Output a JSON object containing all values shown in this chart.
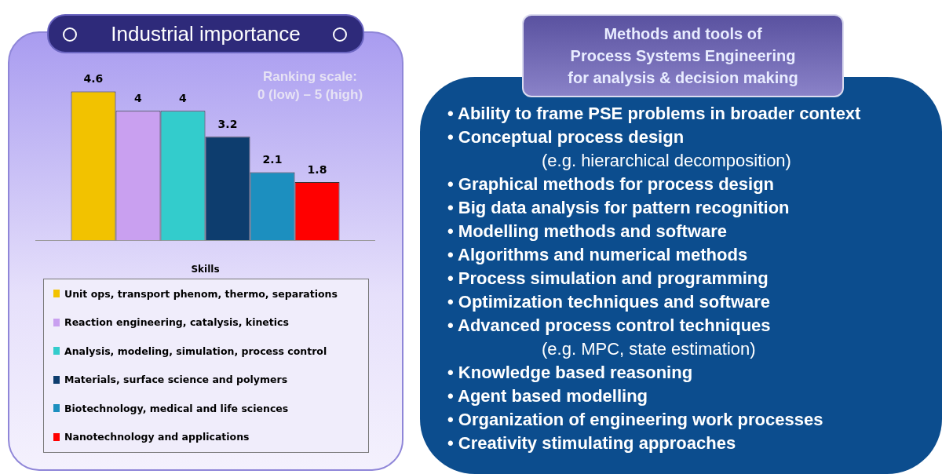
{
  "chart_data": [
    {
      "type": "bar",
      "title": "Industrial importance",
      "xlabel": "Skills",
      "categories": [
        null
      ],
      "series": [
        {
          "name": "Unit ops, transport phenom, thermo, separations",
          "color": "#f2c200",
          "values": [
            4.6
          ]
        },
        {
          "name": "Reaction engineering, catalysis, kinetics",
          "color": "#c9a0f0",
          "values": [
            4
          ]
        },
        {
          "name": "Analysis, modeling, simulation, process control",
          "color": "#33cccc",
          "values": [
            4
          ]
        },
        {
          "name": "Materials, surface science and polymers",
          "color": "#0d3d6e",
          "values": [
            3.2
          ]
        },
        {
          "name": "Biotechnology, medical and life sciences",
          "color": "#1c8fbf",
          "values": [
            2.1
          ]
        },
        {
          "name": "Nanotechnology and applications",
          "color": "#ff0000",
          "values": [
            1.8
          ]
        }
      ],
      "data_labels": true,
      "legend": "bottom",
      "annotations": [
        "Ranking scale:\n0 (low) – 5 (high)"
      ]
    },
    {
      "type": "other",
      "title": "Methods and tools of\nProcess Systems Engineering\nfor analysis & decision making",
      "annotations": [
        "• Ability to frame PSE problems in broader context",
        "• Conceptual process design\n(e.g. hierarchical decomposition)",
        "• Graphical methods for process design",
        "• Big data analysis for pattern recognition",
        "• Modelling methods and software",
        "• Algorithms and numerical methods",
        "• Process simulation and programming",
        "• Optimization techniques and software",
        "• Advanced process control techniques\n(e.g. MPC, state estimation)",
        "• Knowledge based reasoning",
        "• Agent based modelling",
        "• Organization of engineering work processes",
        "• Creativity stimulating approaches"
      ]
    }
  ]
}
